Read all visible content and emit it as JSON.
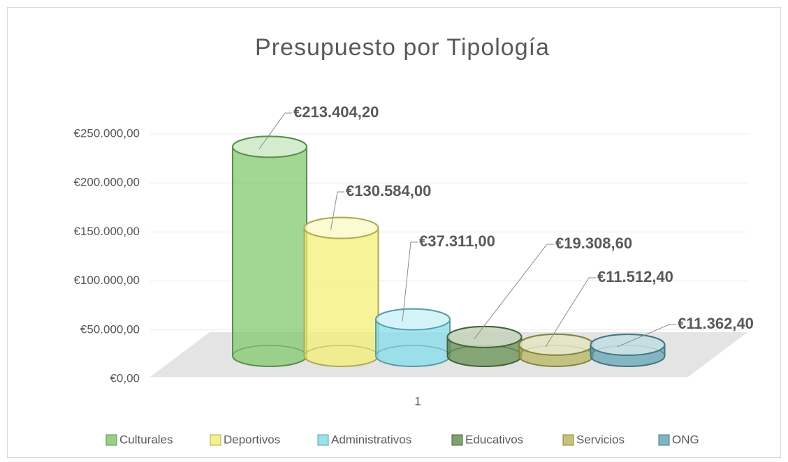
{
  "chart_data": {
    "type": "cylinder3d",
    "title": "Presupuesto por Tipología",
    "categories": [
      "1"
    ],
    "series": [
      {
        "name": "Culturales",
        "color": "#7dc66a",
        "values": [
          213404.2
        ],
        "value_labels": [
          "€213.404,20"
        ]
      },
      {
        "name": "Deportivos",
        "color": "#f3ee72",
        "values": [
          130584.0
        ],
        "value_labels": [
          "€130.584,00"
        ]
      },
      {
        "name": "Administrativos",
        "color": "#7fdceb",
        "values": [
          37311.0
        ],
        "value_labels": [
          "€37.311,00"
        ]
      },
      {
        "name": "Educativos",
        "color": "#5f8c4c",
        "values": [
          19308.6
        ],
        "value_labels": [
          "€19.308,60"
        ]
      },
      {
        "name": "Servicios",
        "color": "#b5b65a",
        "values": [
          11512.4
        ],
        "value_labels": [
          "€11.512,40"
        ]
      },
      {
        "name": "ONG",
        "color": "#5ea2b4",
        "values": [
          11362.4
        ],
        "value_labels": [
          "€11.362,40"
        ]
      }
    ],
    "ylim": [
      0,
      250000
    ],
    "yticks": [
      {
        "value": 0,
        "label": "€0,00"
      },
      {
        "value": 50000,
        "label": "€50.000,00"
      },
      {
        "value": 100000,
        "label": "€100.000,00"
      },
      {
        "value": 150000,
        "label": "€150.000,00"
      },
      {
        "value": 200000,
        "label": "€200.000,00"
      },
      {
        "value": 250000,
        "label": "€250.000,00"
      }
    ],
    "grid": true,
    "legend": "bottom"
  }
}
